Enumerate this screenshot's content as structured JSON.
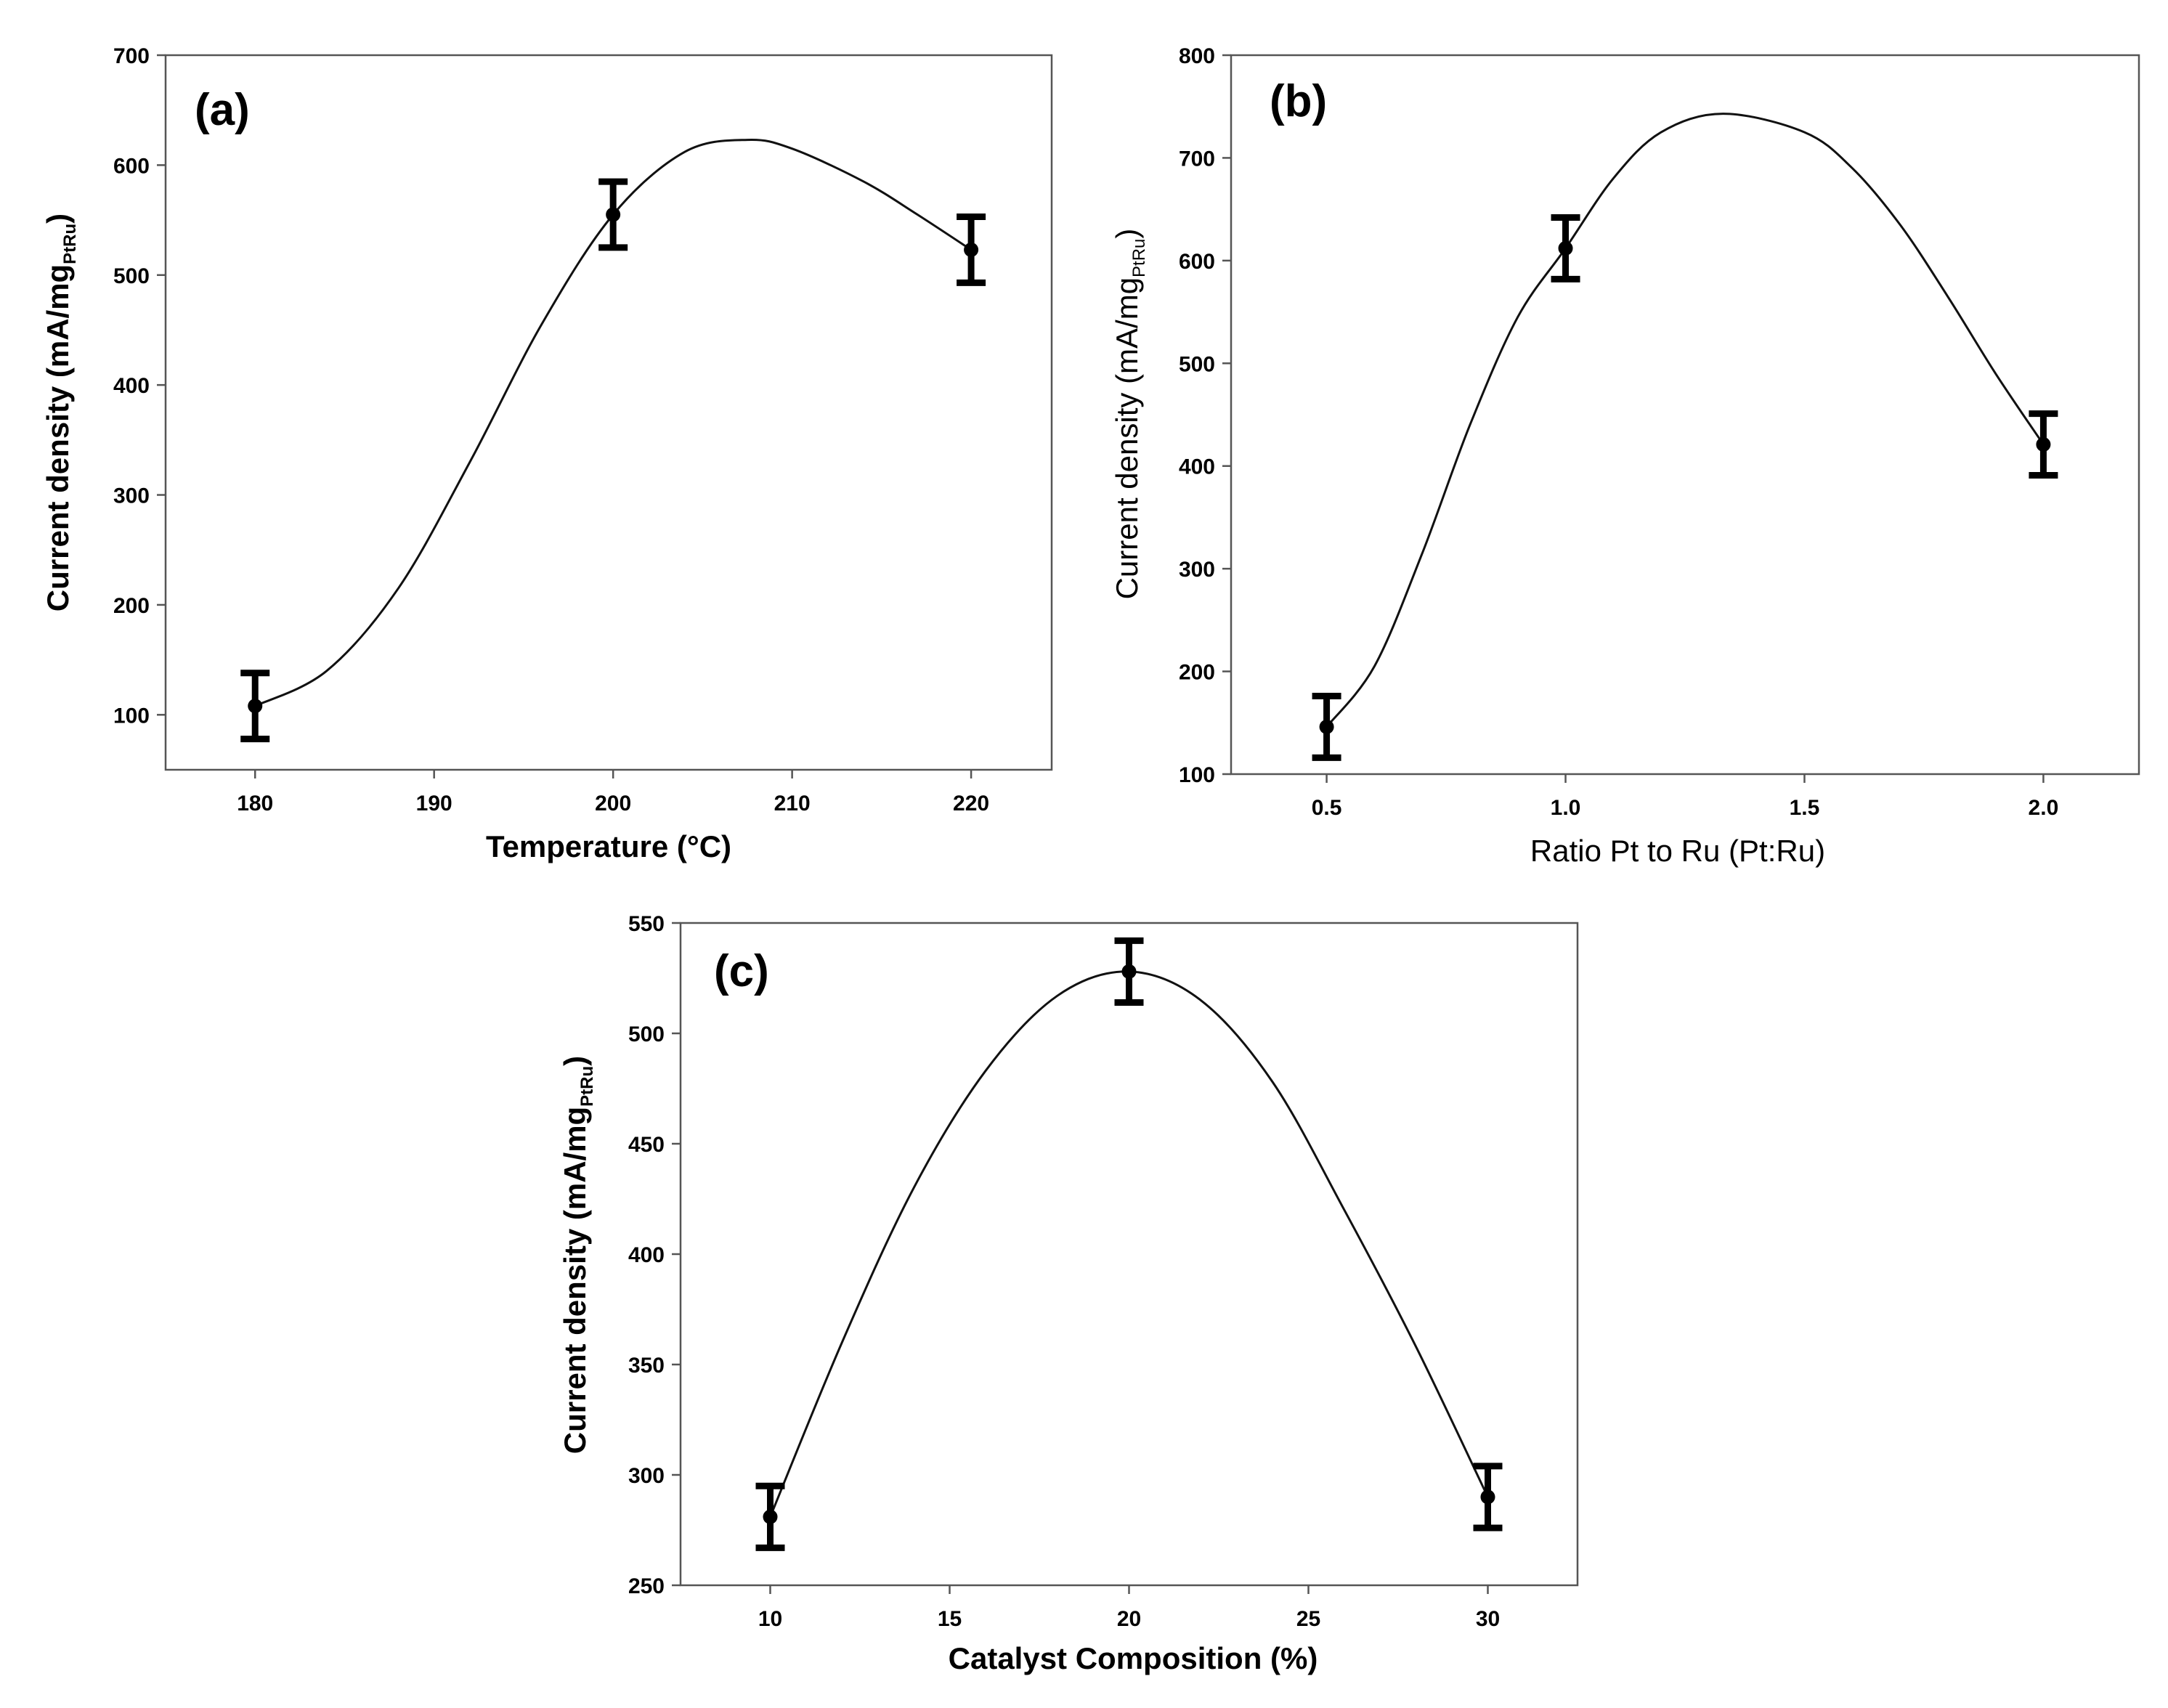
{
  "chart_data": [
    {
      "panel": "(a)",
      "type": "line",
      "title": "",
      "xlabel": "Temperature (°C)",
      "ylabel_main": "Current density (mA/mg",
      "ylabel_sub": "PtRu",
      "ylabel_close": ")",
      "xlim": [
        175,
        224.5
      ],
      "ylim": [
        50,
        700
      ],
      "xticks": [
        180,
        190,
        200,
        210,
        220
      ],
      "xtick_labels": [
        "180",
        "190",
        "200",
        "210",
        "220"
      ],
      "yticks": [
        100,
        200,
        300,
        400,
        500,
        600,
        700
      ],
      "ytick_labels": [
        "100",
        "200",
        "300",
        "400",
        "500",
        "600",
        "700"
      ],
      "points": [
        {
          "x": 180,
          "y": 108,
          "err": 30
        },
        {
          "x": 200,
          "y": 555,
          "err": 30
        },
        {
          "x": 220,
          "y": 523,
          "err": 30
        }
      ],
      "curve": [
        [
          180,
          108
        ],
        [
          184,
          140
        ],
        [
          188,
          215
        ],
        [
          192,
          330
        ],
        [
          196,
          455
        ],
        [
          200,
          555
        ],
        [
          204,
          612
        ],
        [
          207.5,
          623
        ],
        [
          210,
          615
        ],
        [
          214,
          585
        ],
        [
          217,
          555
        ],
        [
          220,
          523
        ]
      ]
    },
    {
      "panel": "(b)",
      "type": "line",
      "title": "",
      "xlabel": "Ratio Pt to Ru (Pt:Ru)",
      "ylabel_main": "Current density (mA/mg",
      "ylabel_sub": "PtRu",
      "ylabel_close": ")",
      "xlim": [
        0.3,
        2.2
      ],
      "ylim": [
        100,
        800
      ],
      "xticks": [
        0.5,
        1.0,
        1.5,
        2.0
      ],
      "xtick_labels": [
        "0.5",
        "1.0",
        "1.5",
        "2.0"
      ],
      "yticks": [
        100,
        200,
        300,
        400,
        500,
        600,
        700,
        800
      ],
      "ytick_labels": [
        "100",
        "200",
        "300",
        "400",
        "500",
        "600",
        "700",
        "800"
      ],
      "points": [
        {
          "x": 0.5,
          "y": 146,
          "err": 30
        },
        {
          "x": 1.0,
          "y": 612,
          "err": 30
        },
        {
          "x": 2.0,
          "y": 421,
          "err": 30
        }
      ],
      "curve": [
        [
          0.5,
          146
        ],
        [
          0.6,
          205
        ],
        [
          0.7,
          315
        ],
        [
          0.8,
          440
        ],
        [
          0.9,
          545
        ],
        [
          1.0,
          612
        ],
        [
          1.1,
          680
        ],
        [
          1.2,
          725
        ],
        [
          1.33,
          743
        ],
        [
          1.5,
          725
        ],
        [
          1.6,
          690
        ],
        [
          1.7,
          635
        ],
        [
          1.8,
          565
        ],
        [
          1.9,
          490
        ],
        [
          2.0,
          421
        ]
      ]
    },
    {
      "panel": "(c)",
      "type": "line",
      "title": "",
      "xlabel": "Catalyst Composition (%)",
      "ylabel_main": "Current density (mA/mg",
      "ylabel_sub": "PtRu",
      "ylabel_close": ")",
      "xlim": [
        7.5,
        32.5
      ],
      "ylim": [
        250,
        550
      ],
      "xticks": [
        10,
        15,
        20,
        25,
        30
      ],
      "xtick_labels": [
        "10",
        "15",
        "20",
        "25",
        "30"
      ],
      "yticks": [
        250,
        300,
        350,
        400,
        450,
        500,
        550
      ],
      "ytick_labels": [
        "250",
        "300",
        "350",
        "400",
        "450",
        "500",
        "550"
      ],
      "points": [
        {
          "x": 10,
          "y": 281,
          "err": 14
        },
        {
          "x": 20,
          "y": 528,
          "err": 14
        },
        {
          "x": 30,
          "y": 290,
          "err": 14
        }
      ],
      "curve": [
        [
          10,
          281
        ],
        [
          12,
          360
        ],
        [
          14,
          430
        ],
        [
          16,
          483
        ],
        [
          18,
          517
        ],
        [
          20,
          528
        ],
        [
          22,
          515
        ],
        [
          24,
          478
        ],
        [
          26,
          420
        ],
        [
          28,
          358
        ],
        [
          30,
          290
        ]
      ]
    }
  ]
}
